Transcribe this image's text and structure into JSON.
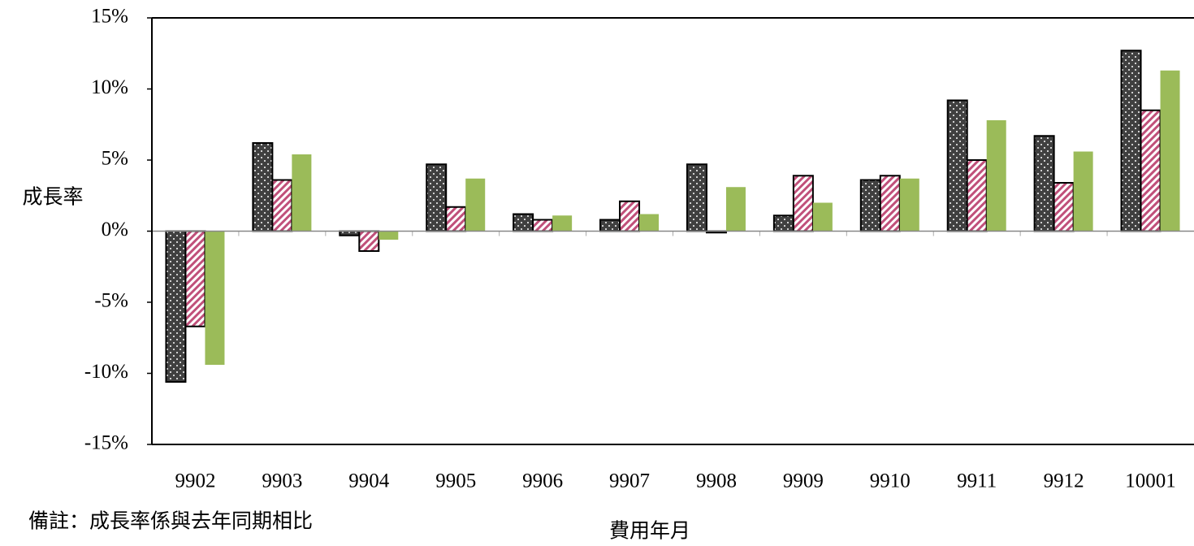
{
  "chart_data": {
    "type": "bar",
    "y_label": "成長率",
    "x_label": "費用年月",
    "note": "備註：成長率係與去年同期相比",
    "categories": [
      "9902",
      "9903",
      "9904",
      "9905",
      "9906",
      "9907",
      "9908",
      "9909",
      "9910",
      "9911",
      "9912",
      "10001"
    ],
    "series": [
      {
        "color": "#404040",
        "pattern": "dots",
        "stroke": "#000000",
        "values": [
          -10.6,
          6.2,
          -0.3,
          4.7,
          1.2,
          0.8,
          4.7,
          1.1,
          3.6,
          9.2,
          6.7,
          12.7
        ]
      },
      {
        "color": "#c0507a",
        "pattern": "hatch",
        "stroke": "#000000",
        "values": [
          -6.7,
          3.6,
          -1.4,
          1.7,
          0.8,
          2.1,
          -0.1,
          3.9,
          3.9,
          5.0,
          3.4,
          8.5
        ]
      },
      {
        "color": "#9bbb59",
        "pattern": "solid",
        "values": [
          -9.4,
          5.4,
          -0.6,
          3.7,
          1.1,
          1.2,
          3.1,
          2.0,
          3.7,
          7.8,
          5.6,
          11.3
        ]
      }
    ],
    "ylim": [
      -15,
      15
    ],
    "yticks": [
      {
        "value": -15,
        "label": "-15%"
      },
      {
        "value": -10,
        "label": "-10%"
      },
      {
        "value": -5,
        "label": "-5%"
      },
      {
        "value": 0,
        "label": "0%"
      },
      {
        "value": 5,
        "label": "5%"
      },
      {
        "value": 10,
        "label": "10%"
      },
      {
        "value": 15,
        "label": "15%"
      }
    ]
  }
}
